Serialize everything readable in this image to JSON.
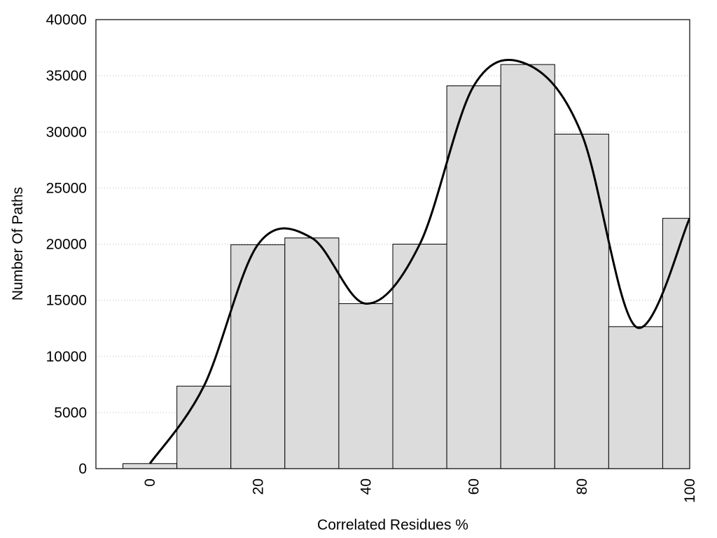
{
  "chart_data": {
    "type": "bar",
    "x": [
      0,
      10,
      20,
      30,
      40,
      50,
      60,
      70,
      80,
      90,
      100
    ],
    "values": [
      450,
      7350,
      19950,
      20550,
      14700,
      20000,
      34100,
      36000,
      29800,
      12650,
      22300
    ],
    "color": "#dcdcdc",
    "smooth_line": true,
    "line_color": "#000000",
    "xlim": [
      -10,
      100
    ],
    "xticks": [
      0,
      20,
      40,
      60,
      80,
      100
    ],
    "ylim": [
      0,
      40000
    ],
    "yticks": [
      0,
      5000,
      10000,
      15000,
      20000,
      25000,
      30000,
      35000,
      40000
    ],
    "grid": true,
    "xlabel": "Correlated Residues %",
    "ylabel": "Number Of Paths"
  }
}
